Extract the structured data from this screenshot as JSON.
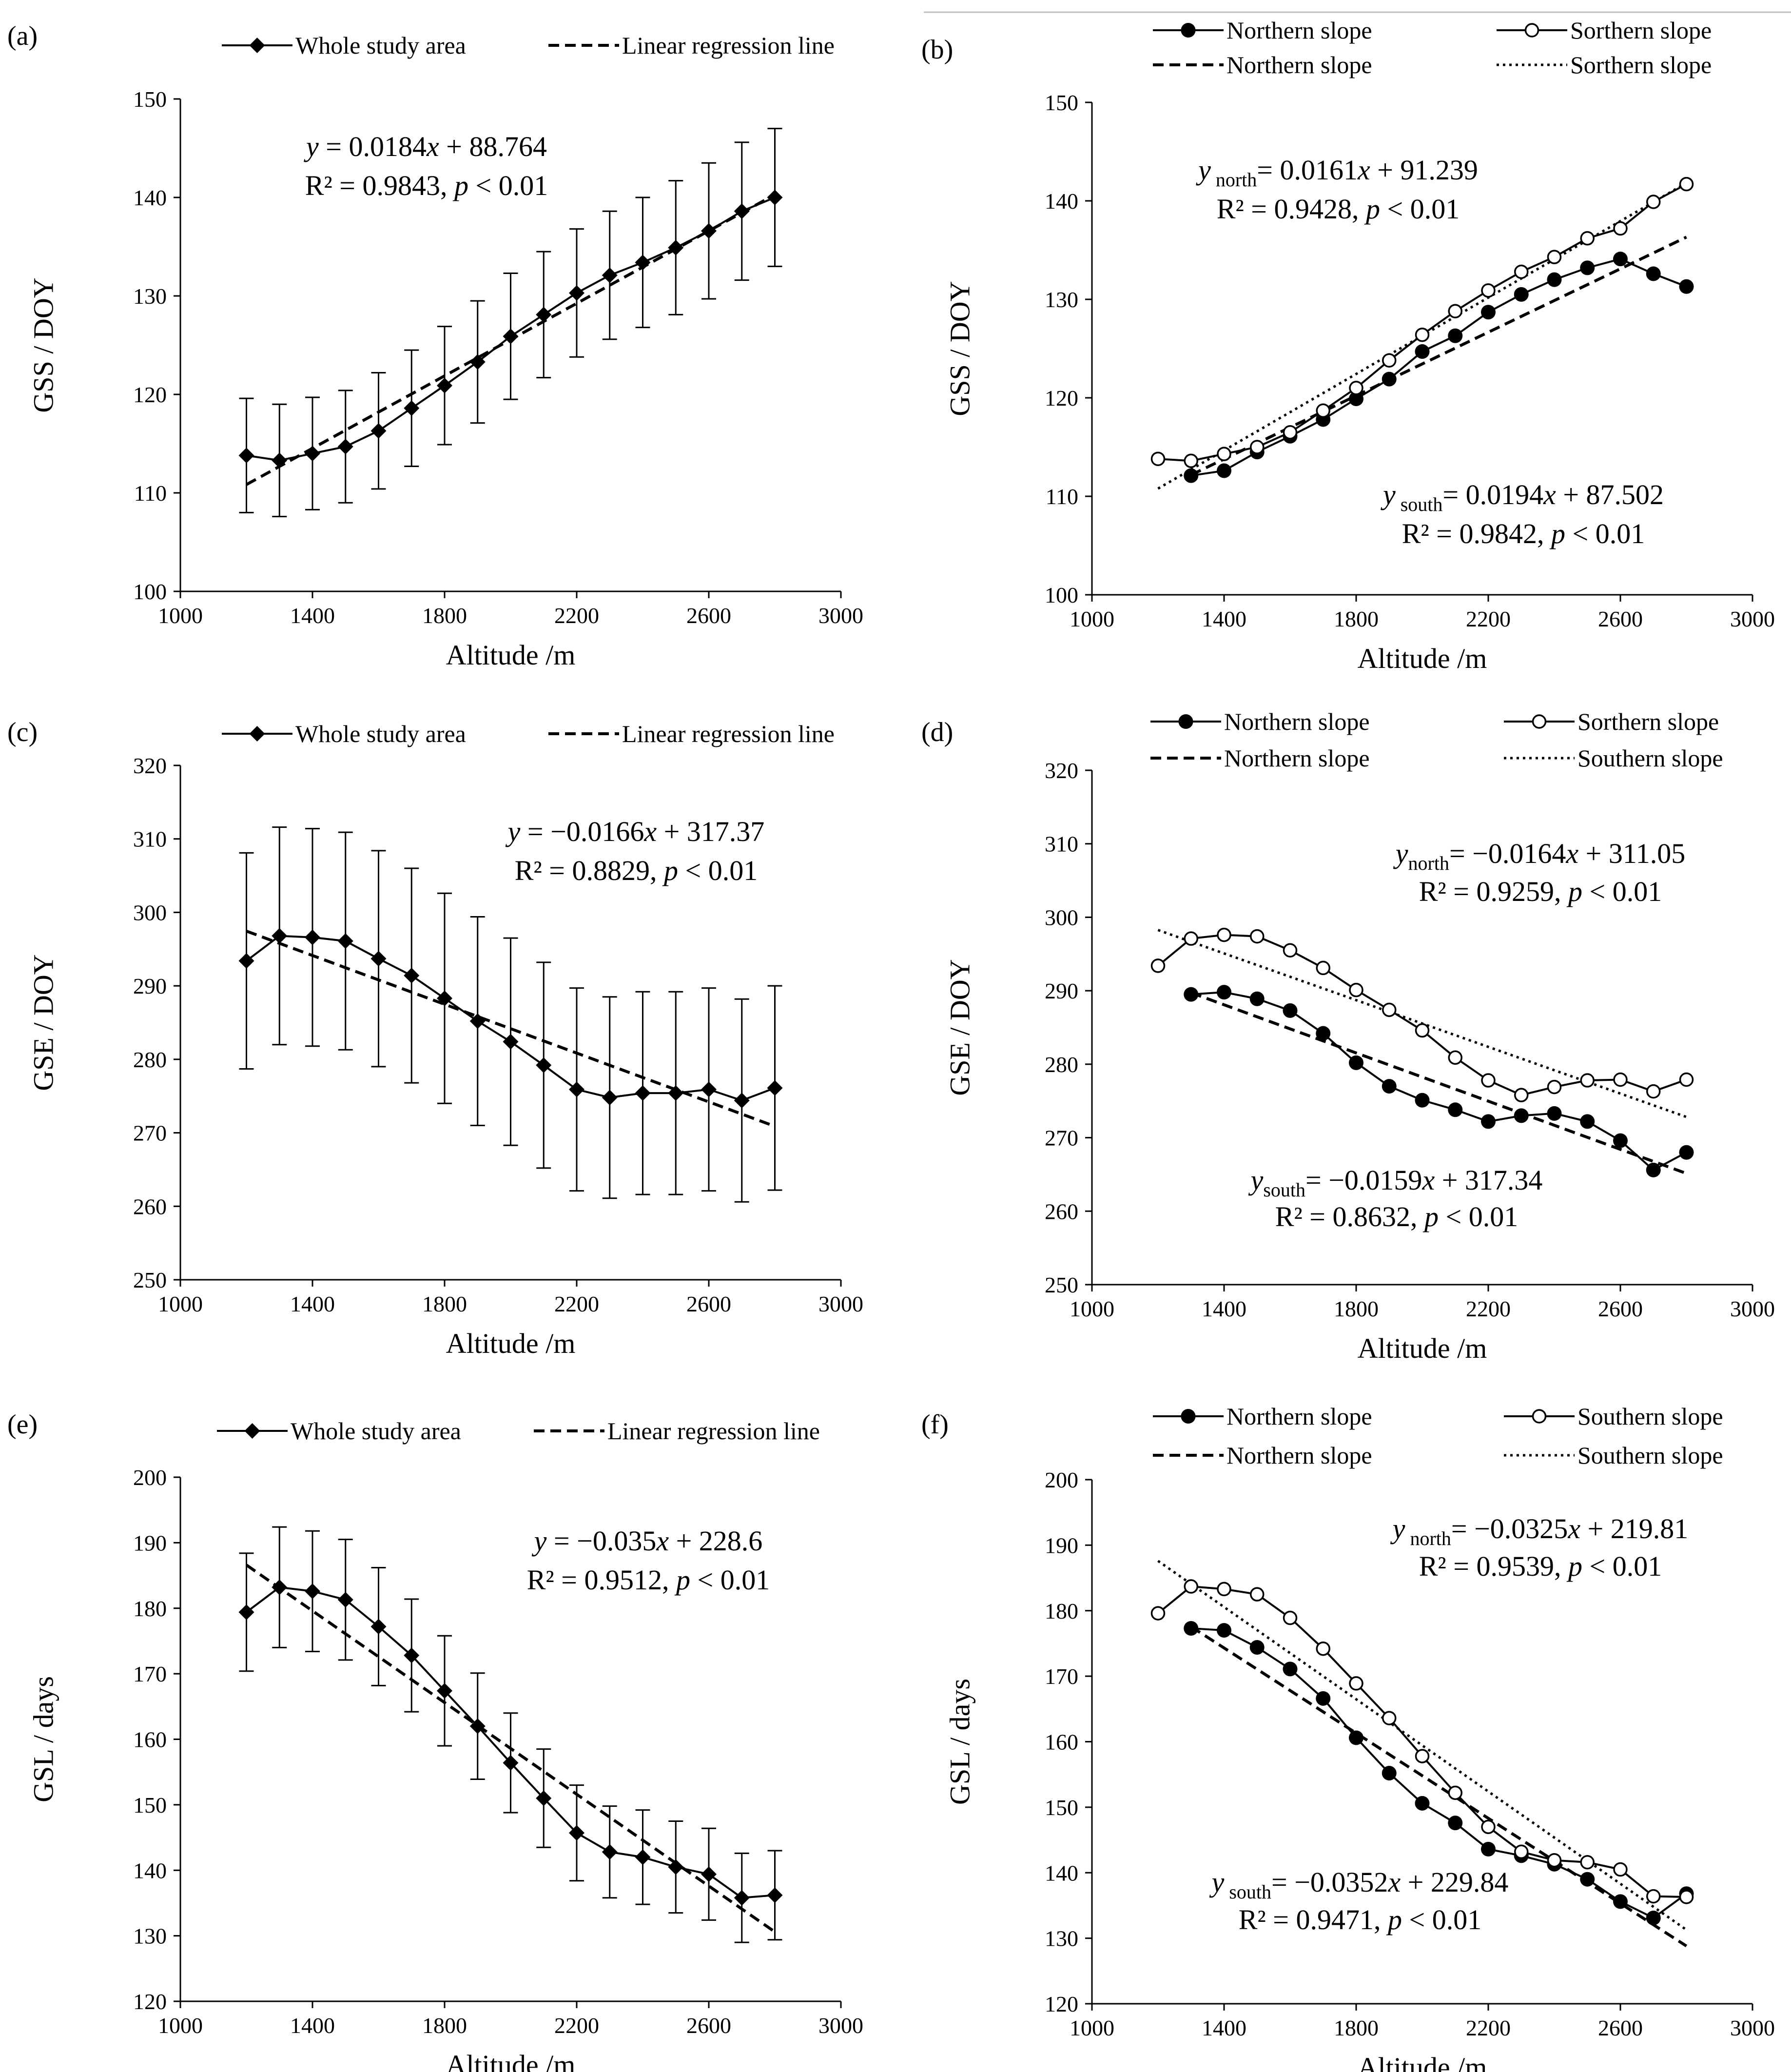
{
  "colors": {
    "ink": "#000000",
    "background": "#ffffff"
  },
  "chart_data": [
    {
      "panel": "(a)",
      "type": "line",
      "xlabel": "Altitude /m",
      "ylabel": "GSS / DOY",
      "xlim": [
        1000,
        3000
      ],
      "ylim": [
        100,
        150
      ],
      "xticks": [
        1000,
        1400,
        1800,
        2200,
        2600,
        3000
      ],
      "yticks": [
        100,
        110,
        120,
        130,
        140,
        150
      ],
      "x": [
        1200,
        1300,
        1400,
        1500,
        1600,
        1700,
        1800,
        1900,
        2000,
        2100,
        2200,
        2300,
        2400,
        2500,
        2600,
        2700,
        2800
      ],
      "series": [
        {
          "name": "Whole study area",
          "marker": "diamond",
          "values": [
            113.8,
            113.3,
            114.0,
            114.7,
            116.3,
            118.6,
            120.9,
            123.3,
            125.9,
            128.1,
            130.3,
            132.1,
            133.4,
            134.9,
            136.6,
            138.6,
            140.0
          ],
          "error": [
            5.8,
            5.7,
            5.7,
            5.7,
            5.9,
            5.9,
            6.0,
            6.2,
            6.4,
            6.4,
            6.5,
            6.5,
            6.6,
            6.8,
            6.9,
            7.0,
            7.0
          ]
        }
      ],
      "regression": [
        {
          "name": "Linear regression line",
          "style": "dashed",
          "slope": 0.0184,
          "intercept": 88.764
        }
      ],
      "legend": [
        "Whole study area",
        "Linear regression line"
      ],
      "annotations": [
        {
          "prefix": "",
          "var": "y",
          "sub": "",
          "rest": " = 0.0184",
          "xv": "x",
          "tail": " + 88.764",
          "r2": "R² = 0.9843, ",
          "p": "p",
          "ptail": " < 0.01"
        }
      ]
    },
    {
      "panel": "(b)",
      "type": "line",
      "xlabel": "Altitude /m",
      "ylabel": "GSS / DOY",
      "xlim": [
        1000,
        3000
      ],
      "ylim": [
        100,
        150
      ],
      "xticks": [
        1000,
        1400,
        1800,
        2200,
        2600,
        3000
      ],
      "yticks": [
        100,
        110,
        120,
        130,
        140,
        150
      ],
      "series": [
        {
          "name": "Northern slope",
          "marker": "filled-circle",
          "x": [
            1300,
            1400,
            1500,
            1600,
            1700,
            1800,
            1900,
            2000,
            2100,
            2200,
            2300,
            2400,
            2500,
            2600,
            2700,
            2800
          ],
          "values": [
            112.1,
            112.6,
            114.5,
            116.1,
            117.8,
            119.9,
            121.9,
            124.7,
            126.3,
            128.7,
            130.5,
            132.0,
            133.2,
            134.1,
            132.6,
            131.3
          ]
        },
        {
          "name": "Sorthern slope",
          "marker": "open-circle",
          "x": [
            1200,
            1300,
            1400,
            1500,
            1600,
            1700,
            1800,
            1900,
            2000,
            2100,
            2200,
            2300,
            2400,
            2500,
            2600,
            2700,
            2800
          ],
          "values": [
            113.8,
            113.6,
            114.3,
            115.0,
            116.5,
            118.7,
            121.0,
            123.8,
            126.4,
            128.8,
            130.9,
            132.8,
            134.3,
            136.2,
            137.2,
            139.9,
            141.7
          ]
        }
      ],
      "regression": [
        {
          "name": "Northern slope",
          "style": "dashed",
          "slope": 0.0161,
          "intercept": 91.239,
          "range": [
            1300,
            2800
          ]
        },
        {
          "name": "Sorthern slope",
          "style": "dotted",
          "slope": 0.0194,
          "intercept": 87.502,
          "range": [
            1200,
            2800
          ]
        }
      ],
      "legend": [
        "Northern slope",
        "Sorthern slope",
        "Northern slope",
        "Sorthern slope"
      ],
      "annotations": [
        {
          "prefix": "",
          "var": "y",
          "sub": " north",
          "rest": "= 0.0161",
          "xv": "x",
          "tail": " + 91.239",
          "r2": "R² = 0.9428, ",
          "p": "p",
          "ptail": " < 0.01"
        },
        {
          "prefix": "",
          "var": "y",
          "sub": " south",
          "rest": "= 0.0194",
          "xv": "x",
          "tail": " + 87.502",
          "r2": "R² = 0.9842, ",
          "p": "p",
          "ptail": " < 0.01"
        }
      ]
    },
    {
      "panel": "(c)",
      "type": "line",
      "xlabel": "Altitude /m",
      "ylabel": "GSE / DOY",
      "xlim": [
        1000,
        3000
      ],
      "ylim": [
        250,
        320
      ],
      "xticks": [
        1000,
        1400,
        1800,
        2200,
        2600,
        3000
      ],
      "yticks": [
        250,
        260,
        270,
        280,
        290,
        300,
        310,
        320
      ],
      "x": [
        1200,
        1300,
        1400,
        1500,
        1600,
        1700,
        1800,
        1900,
        2000,
        2100,
        2200,
        2300,
        2400,
        2500,
        2600,
        2700,
        2800
      ],
      "series": [
        {
          "name": "Whole study area",
          "marker": "diamond",
          "values": [
            293.4,
            296.8,
            296.6,
            296.1,
            293.7,
            291.4,
            288.3,
            285.2,
            282.4,
            279.2,
            275.9,
            274.8,
            275.4,
            275.4,
            275.9,
            274.4,
            276.1
          ],
          "error": [
            14.7,
            14.8,
            14.8,
            14.8,
            14.7,
            14.6,
            14.3,
            14.2,
            14.1,
            14.0,
            13.8,
            13.7,
            13.8,
            13.8,
            13.8,
            13.8,
            13.9
          ]
        }
      ],
      "regression": [
        {
          "name": "Linear regression line",
          "style": "dashed",
          "slope": -0.0166,
          "intercept": 317.37
        }
      ],
      "legend": [
        "Whole study area",
        "Linear regression line"
      ],
      "annotations": [
        {
          "prefix": "",
          "var": "y",
          "sub": "",
          "rest": " = −0.0166",
          "xv": "x",
          "tail": " + 317.37",
          "r2": "R² = 0.8829, ",
          "p": "p",
          "ptail": " < 0.01"
        }
      ]
    },
    {
      "panel": "(d)",
      "type": "line",
      "xlabel": "Altitude /m",
      "ylabel": "GSE / DOY",
      "xlim": [
        1000,
        3000
      ],
      "ylim": [
        250,
        320
      ],
      "xticks": [
        1000,
        1400,
        1800,
        2200,
        2600,
        3000
      ],
      "yticks": [
        250,
        260,
        270,
        280,
        290,
        300,
        310,
        320
      ],
      "series": [
        {
          "name": "Northern slope",
          "marker": "filled-circle",
          "x": [
            1300,
            1400,
            1500,
            1600,
            1700,
            1800,
            1900,
            2000,
            2100,
            2200,
            2300,
            2400,
            2500,
            2600,
            2700,
            2800
          ],
          "values": [
            289.5,
            289.8,
            288.9,
            287.3,
            284.2,
            280.2,
            277.0,
            275.1,
            273.8,
            272.2,
            273.0,
            273.3,
            272.2,
            269.6,
            265.6,
            268.0
          ]
        },
        {
          "name": "Sorthern slope",
          "marker": "open-circle",
          "x": [
            1200,
            1300,
            1400,
            1500,
            1600,
            1700,
            1800,
            1900,
            2000,
            2100,
            2200,
            2300,
            2400,
            2500,
            2600,
            2700,
            2800
          ],
          "values": [
            293.4,
            297.1,
            297.6,
            297.4,
            295.5,
            293.1,
            290.1,
            287.4,
            284.6,
            280.9,
            277.8,
            275.8,
            276.9,
            277.8,
            277.9,
            276.3,
            277.9
          ]
        }
      ],
      "regression": [
        {
          "name": "Northern slope",
          "style": "dashed",
          "slope": -0.0164,
          "intercept": 311.05,
          "range": [
            1300,
            2800
          ]
        },
        {
          "name": "Southern slope",
          "style": "dotted",
          "slope": -0.0159,
          "intercept": 317.34,
          "range": [
            1200,
            2800
          ]
        }
      ],
      "legend": [
        "Northern slope",
        "Sorthern slope",
        "Northern slope",
        "Southern slope"
      ],
      "annotations": [
        {
          "prefix": "",
          "var": "y",
          "sub": "north",
          "rest": "= −0.0164",
          "xv": "x",
          "tail": " + 311.05",
          "r2": "R² = 0.9259, ",
          "p": "p",
          "ptail": " < 0.01"
        },
        {
          "prefix": "",
          "var": "y",
          "sub": "south",
          "rest": "= −0.0159",
          "xv": "x",
          "tail": " + 317.34",
          "r2": "R² = 0.8632, ",
          "p": "p",
          "ptail": " < 0.01"
        }
      ]
    },
    {
      "panel": "(e)",
      "type": "line",
      "xlabel": "Altitude /m",
      "ylabel": "GSL / days",
      "xlim": [
        1000,
        3000
      ],
      "ylim": [
        120,
        200
      ],
      "xticks": [
        1000,
        1400,
        1800,
        2200,
        2600,
        3000
      ],
      "yticks": [
        120,
        130,
        140,
        150,
        160,
        170,
        180,
        190,
        200
      ],
      "x": [
        1200,
        1300,
        1400,
        1500,
        1600,
        1700,
        1800,
        1900,
        2000,
        2100,
        2200,
        2300,
        2400,
        2500,
        2600,
        2700,
        2800
      ],
      "series": [
        {
          "name": "Whole study area",
          "marker": "diamond",
          "values": [
            179.4,
            183.2,
            182.6,
            181.3,
            177.2,
            172.8,
            167.4,
            162.0,
            156.4,
            151.0,
            145.7,
            142.8,
            142.0,
            140.5,
            139.4,
            135.8,
            136.2
          ],
          "error": [
            9.0,
            9.2,
            9.2,
            9.2,
            9.0,
            8.6,
            8.4,
            8.1,
            7.6,
            7.5,
            7.3,
            7.0,
            7.2,
            7.0,
            7.0,
            6.8,
            6.8
          ]
        }
      ],
      "regression": [
        {
          "name": "Linear regression line",
          "style": "dashed",
          "slope": -0.035,
          "intercept": 228.6
        }
      ],
      "legend": [
        "Whole study area",
        "Linear regression line"
      ],
      "annotations": [
        {
          "prefix": "",
          "var": "y",
          "sub": "",
          "rest": " = −0.035",
          "xv": "x",
          "tail": " + 228.6",
          "r2": "R² = 0.9512, ",
          "p": "p",
          "ptail": " < 0.01"
        }
      ]
    },
    {
      "panel": "(f)",
      "type": "line",
      "xlabel": "Altitude /m",
      "ylabel": "GSL / days",
      "xlim": [
        1000,
        3000
      ],
      "ylim": [
        120,
        200
      ],
      "xticks": [
        1000,
        1400,
        1800,
        2200,
        2600,
        3000
      ],
      "yticks": [
        120,
        130,
        140,
        150,
        160,
        170,
        180,
        190,
        200
      ],
      "series": [
        {
          "name": "Northern slope",
          "marker": "filled-circle",
          "x": [
            1300,
            1400,
            1500,
            1600,
            1700,
            1800,
            1900,
            2000,
            2100,
            2200,
            2300,
            2400,
            2500,
            2600,
            2700,
            2800
          ],
          "values": [
            177.3,
            177.0,
            174.4,
            171.1,
            166.6,
            160.6,
            155.2,
            150.6,
            147.6,
            143.6,
            142.6,
            141.3,
            139.0,
            135.6,
            133.1,
            136.8
          ]
        },
        {
          "name": "Southern slope",
          "marker": "open-circle",
          "x": [
            1200,
            1300,
            1400,
            1500,
            1600,
            1700,
            1800,
            1900,
            2000,
            2100,
            2200,
            2300,
            2400,
            2500,
            2600,
            2700,
            2800
          ],
          "values": [
            179.6,
            183.7,
            183.3,
            182.5,
            178.9,
            174.2,
            168.9,
            163.6,
            157.8,
            152.2,
            147.0,
            143.2,
            141.9,
            141.6,
            140.5,
            136.4,
            136.3
          ]
        }
      ],
      "regression": [
        {
          "name": "Northern slope",
          "style": "dashed",
          "slope": -0.0325,
          "intercept": 219.81,
          "range": [
            1300,
            2800
          ]
        },
        {
          "name": "Southern slope",
          "style": "dotted",
          "slope": -0.0352,
          "intercept": 229.84,
          "range": [
            1200,
            2800
          ]
        }
      ],
      "legend": [
        "Northern slope",
        "Southern slope",
        "Northern slope",
        "Southern slope"
      ],
      "annotations": [
        {
          "prefix": "",
          "var": "y",
          "sub": " north",
          "rest": "= −0.0325",
          "xv": "x",
          "tail": " + 219.81",
          "r2": "R² = 0.9539, ",
          "p": "p",
          "ptail": " < 0.01"
        },
        {
          "prefix": "",
          "var": "y",
          "sub": " south",
          "rest": "= −0.0352",
          "xv": "x",
          "tail": " + 229.84",
          "r2": "R² = 0.9471, ",
          "p": "p",
          "ptail": " < 0.01"
        }
      ]
    }
  ]
}
